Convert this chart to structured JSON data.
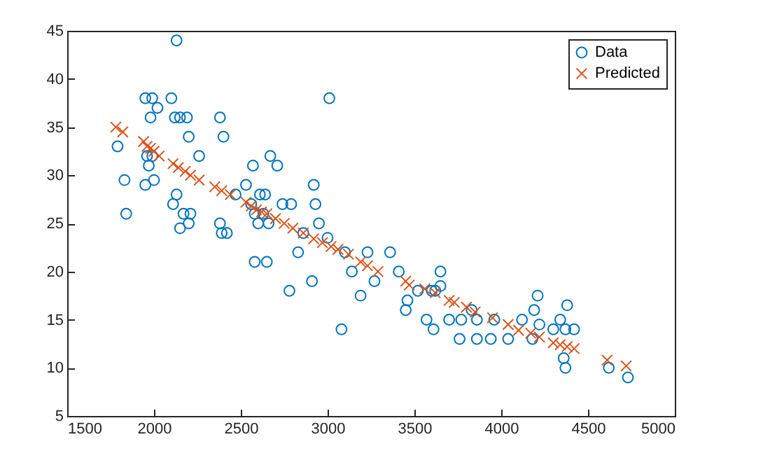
{
  "chart_data": {
    "type": "scatter",
    "xlim": [
      1500,
      5000
    ],
    "xticks": [
      1500,
      2000,
      2500,
      3000,
      3500,
      4000,
      4500,
      5000
    ],
    "ylim": [
      5,
      45
    ],
    "yticks": [
      5,
      10,
      15,
      20,
      25,
      30,
      35,
      40,
      45
    ],
    "grid": false,
    "legend": "top right",
    "series": [
      {
        "name": "Data",
        "color": "#0072bd",
        "marker": "circle",
        "x": [
          1790,
          1830,
          1840,
          1950,
          1990,
          2020,
          1980,
          1960,
          1990,
          1970,
          1950,
          2000,
          2100,
          2120,
          2150,
          2190,
          2130,
          2110,
          2130,
          2170,
          2200,
          2210,
          2150,
          2260,
          2200,
          2380,
          2400,
          2470,
          2380,
          2390,
          2420,
          2530,
          2570,
          2560,
          2580,
          2600,
          2610,
          2640,
          2630,
          2670,
          2710,
          2660,
          2740,
          2790,
          2830,
          2860,
          2580,
          2650,
          2780,
          2920,
          2930,
          2910,
          2950,
          3010,
          3000,
          3080,
          3100,
          3140,
          3190,
          3230,
          3270,
          3360,
          3410,
          3450,
          3460,
          3520,
          3570,
          3600,
          3620,
          3610,
          3650,
          3650,
          3700,
          3760,
          3770,
          3860,
          3830,
          3860,
          3940,
          3960,
          4040,
          4120,
          4190,
          4210,
          4180,
          4220,
          4300,
          4340,
          4370,
          4380,
          4360,
          4370,
          4420,
          4620,
          4730
        ],
        "values": [
          33,
          29.5,
          26,
          38,
          38,
          37,
          36,
          32,
          32,
          31,
          29,
          29.5,
          38,
          36,
          36,
          36,
          44,
          27,
          28,
          26,
          25,
          26,
          24.5,
          32,
          34,
          36,
          34,
          28,
          25,
          24,
          24,
          29,
          31,
          27,
          26,
          25,
          28,
          28,
          26,
          32,
          31,
          25,
          27,
          27,
          22,
          24,
          21,
          21,
          18,
          29,
          27,
          19,
          25,
          38,
          23.5,
          14,
          22,
          20,
          17.5,
          22,
          19,
          22,
          20,
          16,
          17,
          18,
          15,
          18,
          18,
          14,
          20,
          18.5,
          15,
          13,
          15,
          13,
          16,
          15,
          13,
          15,
          13,
          15,
          16,
          17.5,
          13,
          14.5,
          14,
          15,
          14,
          16.5,
          11,
          10,
          14,
          10,
          9
        ]
      },
      {
        "name": "Predicted",
        "color": "#d95319",
        "marker": "cross",
        "x": [
          1780,
          1820,
          1940,
          1960,
          1980,
          2000,
          2030,
          2110,
          2140,
          2180,
          2210,
          2260,
          2350,
          2390,
          2440,
          2530,
          2560,
          2590,
          2620,
          2650,
          2700,
          2750,
          2800,
          2860,
          2920,
          2970,
          3020,
          3060,
          3120,
          3190,
          3230,
          3290,
          3450,
          3470,
          3560,
          3620,
          3700,
          3730,
          3800,
          3850,
          3950,
          4040,
          4100,
          4170,
          4220,
          4300,
          4340,
          4380,
          4420,
          4610,
          4720
        ],
        "values": [
          35,
          34.5,
          33.5,
          33,
          32.8,
          32.5,
          32,
          31.2,
          30.8,
          30.4,
          30,
          29.5,
          28.8,
          28.4,
          28,
          27.2,
          26.8,
          26.4,
          26.2,
          26,
          25.5,
          25,
          24.5,
          24,
          23.4,
          23,
          22.6,
          22.3,
          21.8,
          21,
          20.6,
          20,
          19,
          18.6,
          18.2,
          17.8,
          17,
          16.8,
          16.3,
          15.8,
          15.2,
          14.5,
          13.9,
          13.6,
          13.2,
          12.6,
          12.4,
          12.2,
          12,
          10.8,
          10.2
        ]
      }
    ]
  }
}
